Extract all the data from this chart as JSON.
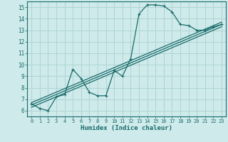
{
  "xlabel": "Humidex (Indice chaleur)",
  "xlim": [
    -0.5,
    23.5
  ],
  "ylim": [
    5.5,
    15.5
  ],
  "xticks": [
    0,
    1,
    2,
    3,
    4,
    5,
    6,
    7,
    8,
    9,
    10,
    11,
    12,
    13,
    14,
    15,
    16,
    17,
    18,
    19,
    20,
    21,
    22,
    23
  ],
  "yticks": [
    6,
    7,
    8,
    9,
    10,
    11,
    12,
    13,
    14,
    15
  ],
  "bg_color": "#ceeaea",
  "line_color": "#1a6b6b",
  "grid_color": "#b0d4d4",
  "line1_x": [
    0,
    1,
    2,
    3,
    4,
    5,
    6,
    7,
    8,
    9,
    10,
    11,
    12,
    13,
    14,
    15,
    16,
    17,
    18,
    19,
    20,
    21,
    22,
    23
  ],
  "line1_y": [
    6.6,
    6.2,
    6.0,
    7.2,
    7.4,
    9.6,
    8.8,
    7.6,
    7.3,
    7.3,
    9.5,
    9.0,
    10.5,
    14.4,
    15.2,
    15.2,
    15.1,
    14.6,
    13.5,
    13.4,
    13.0,
    13.0,
    13.3,
    13.5
  ],
  "trend1": [
    6.5,
    13.5
  ],
  "trend2": [
    6.7,
    13.7
  ],
  "trend3": [
    6.3,
    13.3
  ]
}
